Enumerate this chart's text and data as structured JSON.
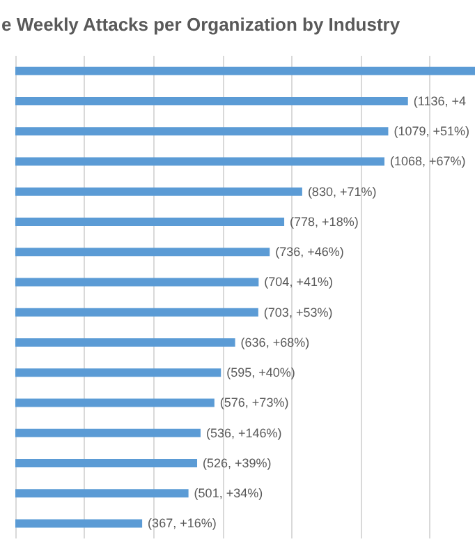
{
  "chart_data": {
    "type": "bar",
    "orientation": "horizontal",
    "title": "e Weekly Attacks per Organization by Industry",
    "categories": [
      null,
      null,
      null,
      null,
      null,
      null,
      null,
      null,
      null,
      null,
      null,
      null,
      null,
      null,
      null,
      null
    ],
    "values": [
      1330,
      1136,
      1079,
      1068,
      830,
      778,
      736,
      704,
      703,
      636,
      595,
      576,
      536,
      526,
      501,
      367
    ],
    "value_labels": [
      null,
      "(1136, +4",
      "(1079, +51%)",
      "(1068, +67%)",
      "(830, +71%)",
      "(778, +18%)",
      "(736, +46%)",
      "(704, +41%)",
      "(703, +53%)",
      "(636, +68%)",
      "(595, +40%)",
      "(576, +73%)",
      "(536, +146%)",
      "(526, +39%)",
      "(501, +34%)",
      "(367, +16%)"
    ],
    "color": "#5b9bd5",
    "xlim": [
      0,
      1330
    ],
    "xticks": [
      {
        "value": 0,
        "label": null
      },
      {
        "value": 200,
        "label": null
      },
      {
        "value": 400,
        "label": null
      },
      {
        "value": 600,
        "label": null
      },
      {
        "value": 800,
        "label": null
      },
      {
        "value": 1000,
        "label": null
      },
      {
        "value": 1200,
        "label": null
      }
    ],
    "grid": "x"
  }
}
